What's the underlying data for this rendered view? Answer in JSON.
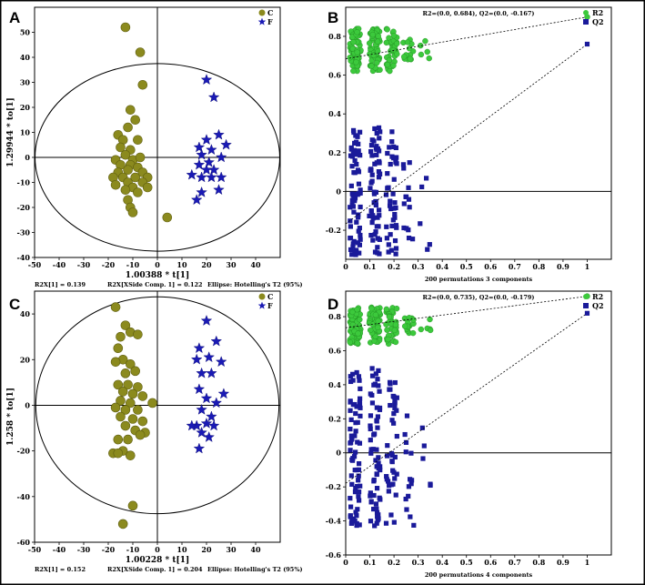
{
  "chart_data": [
    {
      "panel": "A",
      "type": "scatter",
      "subtype": "OPLS-DA score plot",
      "xlabel": "1.00388 * t[1]",
      "ylabel": "1.29944 * to[1]",
      "xlim": [
        -50,
        50
      ],
      "ylim": [
        -40,
        60
      ],
      "xticks": [
        -50,
        -40,
        -30,
        -20,
        -10,
        0,
        10,
        20,
        30,
        40
      ],
      "yticks": [
        -40,
        -30,
        -20,
        -10,
        0,
        10,
        20,
        30,
        40,
        50
      ],
      "ellipse": {
        "rx": 49.8,
        "ry": 37.5
      },
      "legend": [
        "C",
        "F"
      ],
      "footer": [
        "R2X[1] = 0.139",
        "R2X[XSide Comp. 1] = 0.122",
        "Ellipse: Hotelling's T2 (95%)"
      ],
      "series": [
        {
          "name": "C",
          "marker": "circle",
          "color": "#8b8a1e",
          "points": [
            [
              -13,
              52
            ],
            [
              -7,
              42
            ],
            [
              -6,
              29
            ],
            [
              -11,
              19
            ],
            [
              -9,
              15
            ],
            [
              -12,
              12
            ],
            [
              -16,
              9
            ],
            [
              -14,
              7
            ],
            [
              -8,
              7
            ],
            [
              -15,
              4
            ],
            [
              -11,
              3
            ],
            [
              -13,
              1
            ],
            [
              -17,
              -1
            ],
            [
              -10,
              -1
            ],
            [
              -7,
              0
            ],
            [
              -15,
              -3
            ],
            [
              -11,
              -3
            ],
            [
              -8,
              -4
            ],
            [
              -12,
              -5
            ],
            [
              -16,
              -6
            ],
            [
              -6,
              -6
            ],
            [
              -18,
              -8
            ],
            [
              -14,
              -8
            ],
            [
              -9,
              -8
            ],
            [
              -4,
              -8
            ],
            [
              -12,
              -10
            ],
            [
              -6,
              -10
            ],
            [
              -17,
              -11
            ],
            [
              -10,
              -12
            ],
            [
              -13,
              -13
            ],
            [
              -4,
              -12
            ],
            [
              -8,
              -14
            ],
            [
              -12,
              -17
            ],
            [
              -11,
              -20
            ],
            [
              -10,
              -22
            ],
            [
              4,
              -24
            ]
          ]
        },
        {
          "name": "F",
          "marker": "star",
          "color": "#1a1ab5",
          "points": [
            [
              20,
              31
            ],
            [
              23,
              24
            ],
            [
              25,
              9
            ],
            [
              20,
              7
            ],
            [
              17,
              4
            ],
            [
              28,
              5
            ],
            [
              22,
              3
            ],
            [
              18,
              1
            ],
            [
              26,
              0
            ],
            [
              21,
              -2
            ],
            [
              17,
              -3
            ],
            [
              23,
              -5
            ],
            [
              20,
              -5
            ],
            [
              14,
              -7
            ],
            [
              18,
              -8
            ],
            [
              22,
              -8
            ],
            [
              26,
              -8
            ],
            [
              25,
              -13
            ],
            [
              18,
              -14
            ],
            [
              16,
              -17
            ]
          ]
        }
      ]
    },
    {
      "panel": "B",
      "type": "scatter",
      "subtype": "permutation test",
      "title": "R2=(0.0, 0.684), Q2=(0.0, -0.167)",
      "xlabel": "200 permutations 3 components",
      "ylabel": "",
      "xlim": [
        0,
        1.1
      ],
      "ylim": [
        -0.35,
        0.95
      ],
      "xticks": [
        0,
        0.1,
        0.2,
        0.3,
        0.4,
        0.5,
        0.6,
        0.7,
        0.8,
        0.9,
        1
      ],
      "yticks": [
        -0.2,
        0,
        0.2,
        0.4,
        0.6,
        0.8
      ],
      "legend": [
        "R2",
        "Q2"
      ],
      "series": [
        {
          "name": "R2",
          "marker": "circle",
          "color": "#3cc93c",
          "observed": [
            1,
            0.9
          ],
          "regression": [
            [
              0,
              0.684
            ],
            [
              1,
              0.9
            ]
          ],
          "cluster_x": [
            0.04,
            0.12,
            0.19,
            0.26,
            0.33
          ],
          "range": [
            0.62,
            0.84
          ]
        },
        {
          "name": "Q2",
          "marker": "square",
          "color": "#1a1a9a",
          "observed": [
            1,
            0.76
          ],
          "regression": [
            [
              0,
              -0.167
            ],
            [
              1,
              0.76
            ]
          ],
          "cluster_x": [
            0.04,
            0.12,
            0.19,
            0.26,
            0.33
          ],
          "range": [
            -0.33,
            0.33
          ]
        }
      ]
    },
    {
      "panel": "C",
      "type": "scatter",
      "subtype": "OPLS-DA score plot",
      "xlabel": "1.00228 * t[1]",
      "ylabel": "1.258 * to[1]",
      "xlim": [
        -50,
        50
      ],
      "ylim": [
        -60,
        50
      ],
      "xticks": [
        -50,
        -40,
        -30,
        -20,
        -10,
        0,
        10,
        20,
        30,
        40
      ],
      "yticks": [
        -60,
        -40,
        -20,
        0,
        20,
        40
      ],
      "ellipse": {
        "rx": 49.5,
        "ry": 47.5
      },
      "legend": [
        "C",
        "F"
      ],
      "footer": [
        "R2X[1] = 0.152",
        "R2X[XSide Comp. 1] = 0.204",
        "Ellipse: Hotelling's T2 (95%)"
      ],
      "series": [
        {
          "name": "C",
          "marker": "circle",
          "color": "#8b8a1e",
          "points": [
            [
              -17,
              43
            ],
            [
              -13,
              35
            ],
            [
              -11,
              32
            ],
            [
              -15,
              30
            ],
            [
              -8,
              31
            ],
            [
              -16,
              25
            ],
            [
              -14,
              20
            ],
            [
              -11,
              18
            ],
            [
              -17,
              19
            ],
            [
              -13,
              14
            ],
            [
              -9,
              15
            ],
            [
              -16,
              9
            ],
            [
              -12,
              9
            ],
            [
              -8,
              8
            ],
            [
              -14,
              6
            ],
            [
              -10,
              5
            ],
            [
              -6,
              4
            ],
            [
              -15,
              2
            ],
            [
              -11,
              1
            ],
            [
              -2,
              1
            ],
            [
              -17,
              -1
            ],
            [
              -13,
              -2
            ],
            [
              -8,
              -2
            ],
            [
              -15,
              -5
            ],
            [
              -10,
              -6
            ],
            [
              -6,
              -7
            ],
            [
              -13,
              -9
            ],
            [
              -9,
              -11
            ],
            [
              -5,
              -12
            ],
            [
              -7,
              -13
            ],
            [
              -16,
              -15
            ],
            [
              -12,
              -15
            ],
            [
              -14,
              -20
            ],
            [
              -18,
              -21
            ],
            [
              -16,
              -21
            ],
            [
              -11,
              -22
            ],
            [
              -10,
              -44
            ],
            [
              -14,
              -52
            ]
          ]
        },
        {
          "name": "F",
          "marker": "star",
          "color": "#1a1ab5",
          "points": [
            [
              20,
              37
            ],
            [
              24,
              28
            ],
            [
              17,
              25
            ],
            [
              16,
              20
            ],
            [
              21,
              21
            ],
            [
              26,
              19
            ],
            [
              18,
              14
            ],
            [
              22,
              14
            ],
            [
              17,
              7
            ],
            [
              27,
              5
            ],
            [
              20,
              3
            ],
            [
              24,
              1
            ],
            [
              18,
              -2
            ],
            [
              22,
              -5
            ],
            [
              16,
              -9
            ],
            [
              20,
              -8
            ],
            [
              23,
              -9
            ],
            [
              14,
              -9
            ],
            [
              18,
              -12
            ],
            [
              21,
              -14
            ],
            [
              17,
              -19
            ]
          ]
        }
      ]
    },
    {
      "panel": "D",
      "type": "scatter",
      "subtype": "permutation test",
      "title": "R2=(0.0, 0.735), Q2=(0.0, -0.179)",
      "xlabel": "200 permutations 4 components",
      "ylabel": "",
      "xlim": [
        0,
        1.1
      ],
      "ylim": [
        -0.6,
        0.95
      ],
      "xticks": [
        0,
        0.1,
        0.2,
        0.3,
        0.4,
        0.5,
        0.6,
        0.7,
        0.8,
        0.9,
        1
      ],
      "yticks": [
        -0.6,
        -0.4,
        -0.2,
        0,
        0.2,
        0.4,
        0.6,
        0.8
      ],
      "legend": [
        "R2",
        "Q2"
      ],
      "series": [
        {
          "name": "R2",
          "marker": "circle",
          "color": "#3cc93c",
          "observed": [
            1,
            0.92
          ],
          "regression": [
            [
              0,
              0.735
            ],
            [
              1,
              0.92
            ]
          ],
          "cluster_x": [
            0.04,
            0.12,
            0.19,
            0.26,
            0.33
          ],
          "range": [
            0.64,
            0.86
          ]
        },
        {
          "name": "Q2",
          "marker": "square",
          "color": "#1a1a9a",
          "observed": [
            1,
            0.82
          ],
          "regression": [
            [
              0,
              -0.179
            ],
            [
              1,
              0.82
            ]
          ],
          "cluster_x": [
            0.04,
            0.12,
            0.19,
            0.26,
            0.33
          ],
          "range": [
            -0.43,
            0.5
          ]
        }
      ]
    }
  ]
}
